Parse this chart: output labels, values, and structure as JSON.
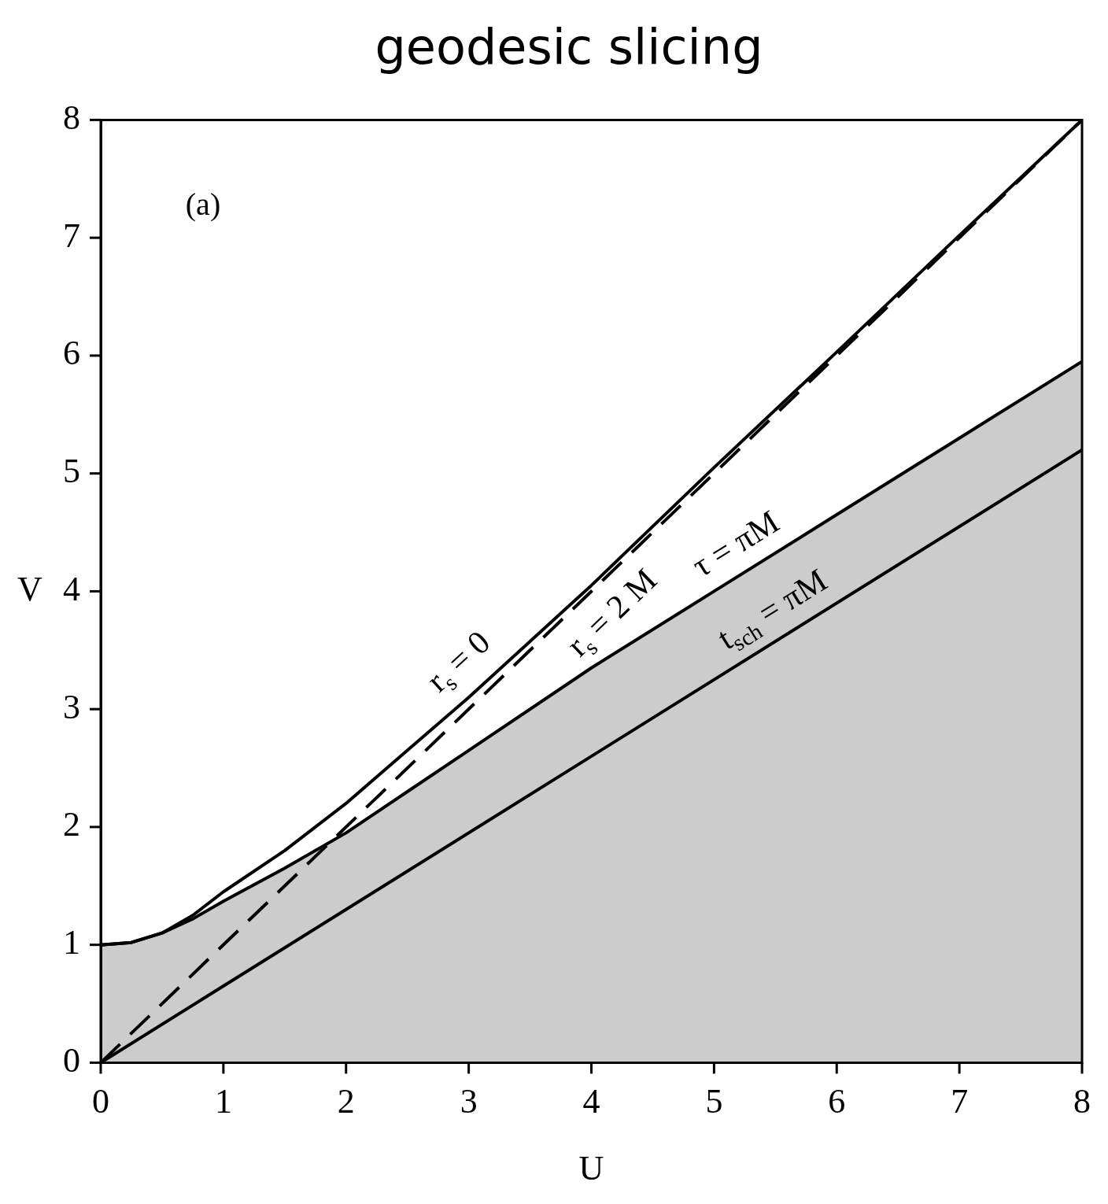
{
  "chart_data": {
    "type": "line",
    "title": "geodesic slicing",
    "xlabel": "U",
    "ylabel": "V",
    "xlim": [
      0,
      8
    ],
    "ylim": [
      0,
      8
    ],
    "xticks": [
      0,
      1,
      2,
      3,
      4,
      5,
      6,
      7,
      8
    ],
    "yticks": [
      0,
      1,
      2,
      3,
      4,
      5,
      6,
      7,
      8
    ],
    "series": [
      {
        "type": "area",
        "name": "τ = πM",
        "color": "#000000",
        "x": [
          0,
          0.25,
          0.5,
          0.75,
          1,
          1.5,
          2,
          3,
          4,
          5,
          6,
          7,
          8
        ],
        "values": [
          1,
          1.02,
          1.1,
          1.22,
          1.37,
          1.65,
          1.95,
          2.65,
          3.35,
          4.0,
          4.65,
          5.3,
          5.95
        ]
      },
      {
        "type": "line",
        "name": "r$_{s}$ = 0",
        "color": "#000000",
        "x": [
          0,
          0.25,
          0.5,
          0.75,
          1,
          1.5,
          2,
          3,
          4,
          5,
          6,
          7,
          8
        ],
        "values": [
          1,
          1.02,
          1.1,
          1.25,
          1.45,
          1.8,
          2.2,
          3.1,
          4.05,
          5.05,
          6.03,
          7.02,
          8
        ]
      },
      {
        "type": "line",
        "name": "r$_{s}$ = 2 M",
        "color": "#000000",
        "line_style": "dashed",
        "x": [
          0,
          8
        ],
        "values": [
          0,
          8
        ]
      },
      {
        "type": "line",
        "name": "t$_{sch}$ = πM",
        "color": "#000000",
        "x": [
          0,
          8
        ],
        "values": [
          0,
          5.2
        ]
      }
    ],
    "annotations": [
      "(a)"
    ]
  }
}
